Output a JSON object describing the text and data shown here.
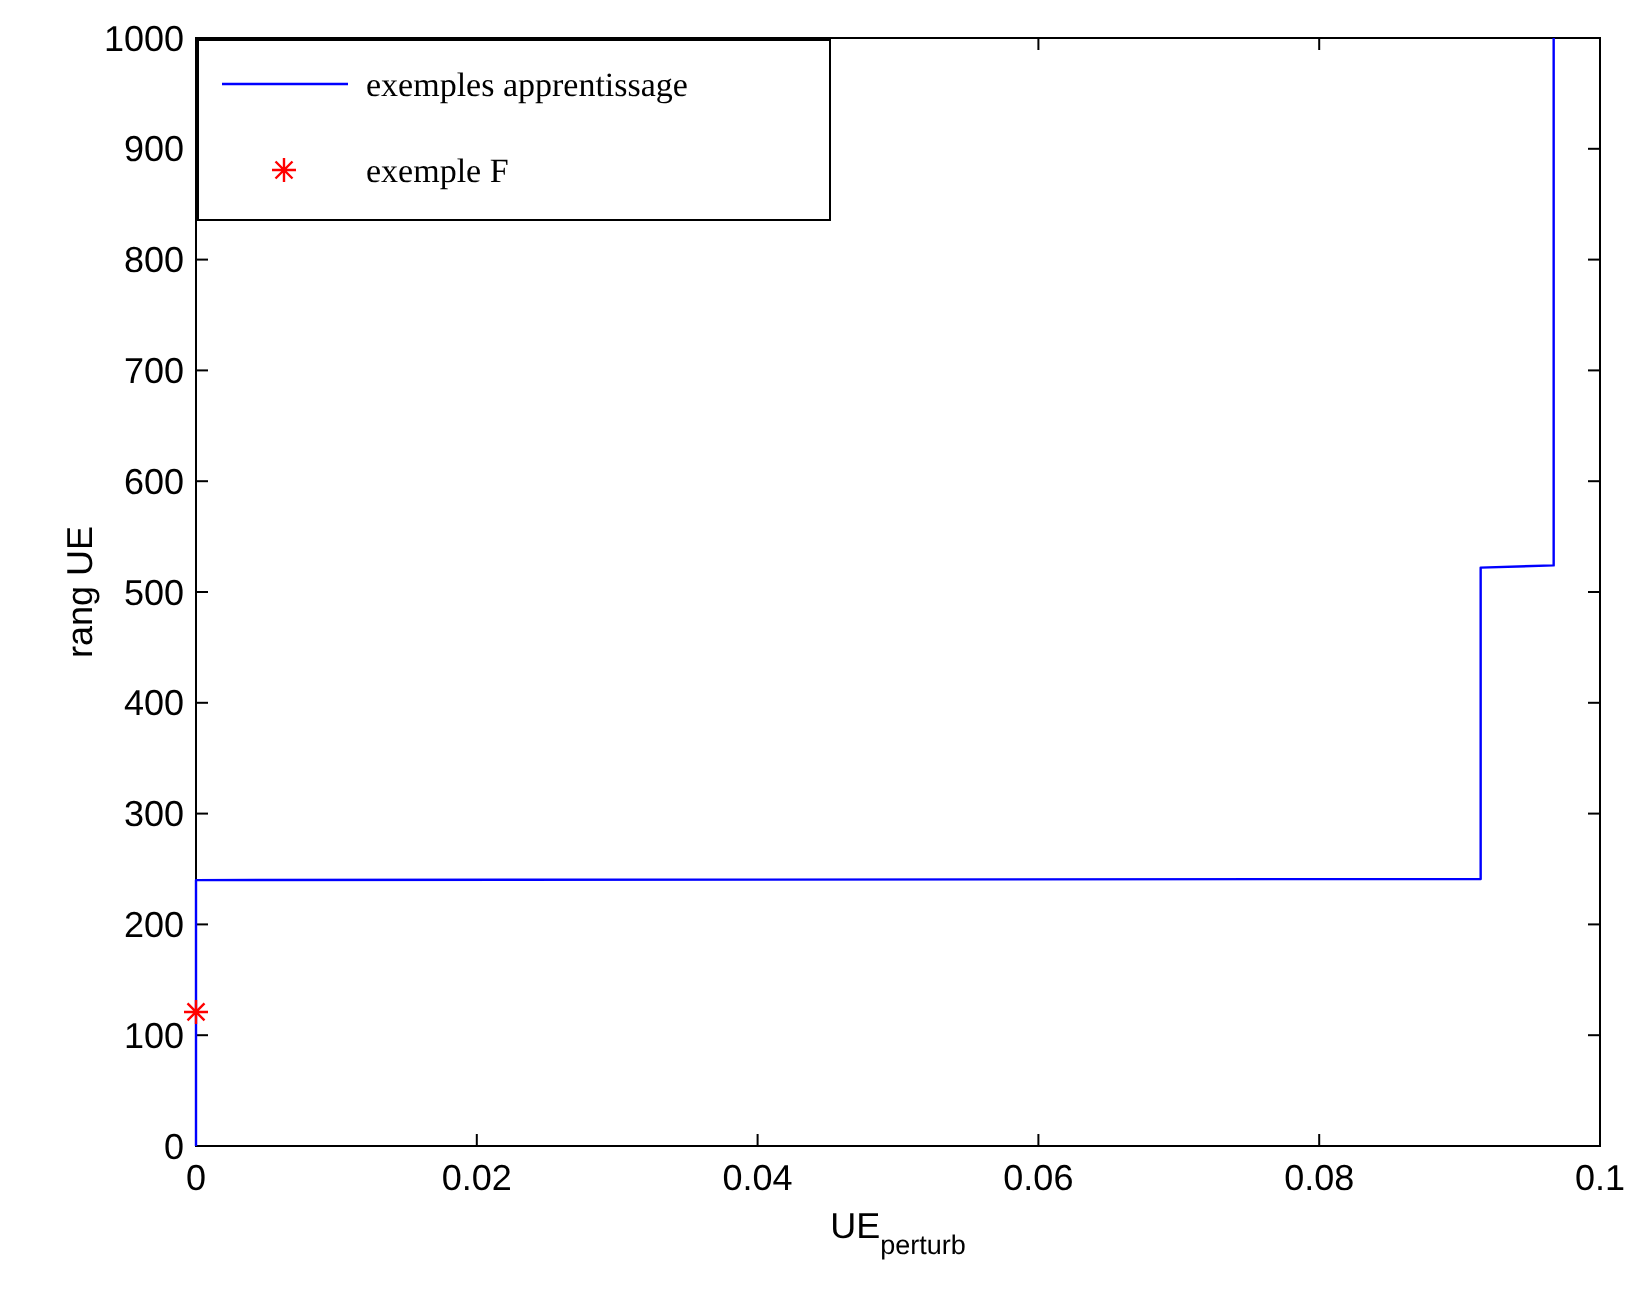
{
  "chart_data": {
    "type": "line",
    "xlabel": "UE$_{perturb}$",
    "ylabel": "rang UE",
    "xlim": [
      0,
      0.1
    ],
    "ylim": [
      0,
      1000
    ],
    "xticks": [
      0,
      0.02,
      0.04,
      0.06,
      0.08,
      0.1
    ],
    "yticks": [
      0,
      100,
      200,
      300,
      400,
      500,
      600,
      700,
      800,
      900,
      1000
    ],
    "grid": false,
    "legend": "top left",
    "series": [
      {
        "name": "exemples apprentissage",
        "color": "#0000ff",
        "marker": "none",
        "x": [
          0,
          0,
          0.0915,
          0.0915,
          0.0967,
          0.0967
        ],
        "values": [
          0,
          240,
          241,
          522,
          524,
          1000
        ]
      },
      {
        "name": "exemple F",
        "type": "scatter",
        "color": "#ff0000",
        "marker": "cross",
        "x": [
          0
        ],
        "values": [
          121
        ]
      }
    ]
  }
}
